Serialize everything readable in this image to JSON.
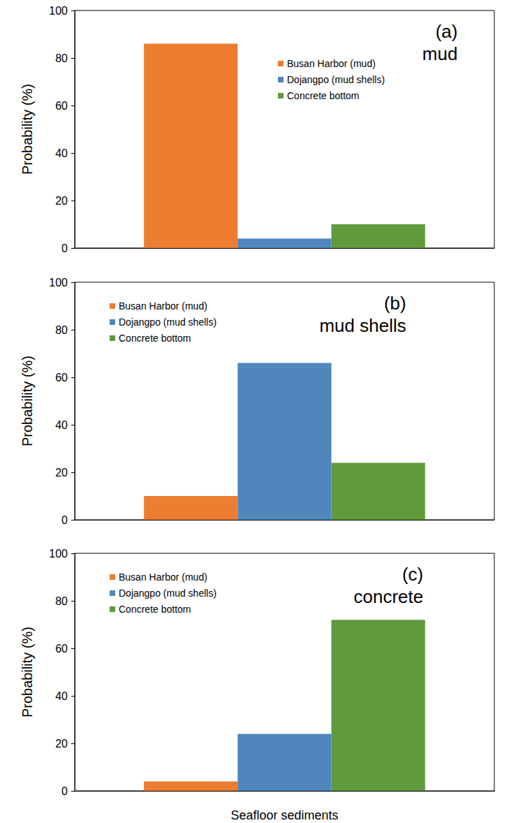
{
  "chart_data": [
    {
      "type": "bar",
      "title": "(a)",
      "subtitle": "mud",
      "y_label": "Probability (%)",
      "categories": [
        null
      ],
      "series": [
        {
          "name": "Busan Harbor (mud)",
          "color": "#ed7d31",
          "values": [
            86
          ]
        },
        {
          "name": "Dojangpo (mud shells)",
          "color": "#4f87bd",
          "values": [
            4
          ]
        },
        {
          "name": "Concrete bottom",
          "color": "#5f9a3c",
          "values": [
            10
          ]
        }
      ],
      "ylim": [
        0,
        100
      ],
      "yticks": [
        0,
        20,
        40,
        60,
        80,
        100
      ],
      "grid": false,
      "legend": "top"
    },
    {
      "type": "bar",
      "title": "(b)",
      "subtitle": "mud shells",
      "y_label": "Probability (%)",
      "categories": [
        null
      ],
      "series": [
        {
          "name": "Busan Harbor (mud)",
          "color": "#ed7d31",
          "values": [
            10
          ]
        },
        {
          "name": "Dojangpo (mud shells)",
          "color": "#4f87bd",
          "values": [
            66
          ]
        },
        {
          "name": "Concrete bottom",
          "color": "#5f9a3c",
          "values": [
            24
          ]
        }
      ],
      "ylim": [
        0,
        100
      ],
      "yticks": [
        0,
        20,
        40,
        60,
        80,
        100
      ],
      "grid": false,
      "legend": "top-left"
    },
    {
      "type": "bar",
      "title": "(c)",
      "subtitle": "concrete",
      "y_label": "Probability (%)",
      "x_label": "Seafloor sediments",
      "categories": [
        null
      ],
      "series": [
        {
          "name": "Busan Harbor (mud)",
          "color": "#ed7d31",
          "values": [
            4
          ]
        },
        {
          "name": "Dojangpo (mud shells)",
          "color": "#4f87bd",
          "values": [
            24
          ]
        },
        {
          "name": "Concrete bottom",
          "color": "#5f9a3c",
          "values": [
            72
          ]
        }
      ],
      "ylim": [
        0,
        100
      ],
      "yticks": [
        0,
        20,
        40,
        60,
        80,
        100
      ],
      "grid": false,
      "legend": "top-left"
    }
  ]
}
